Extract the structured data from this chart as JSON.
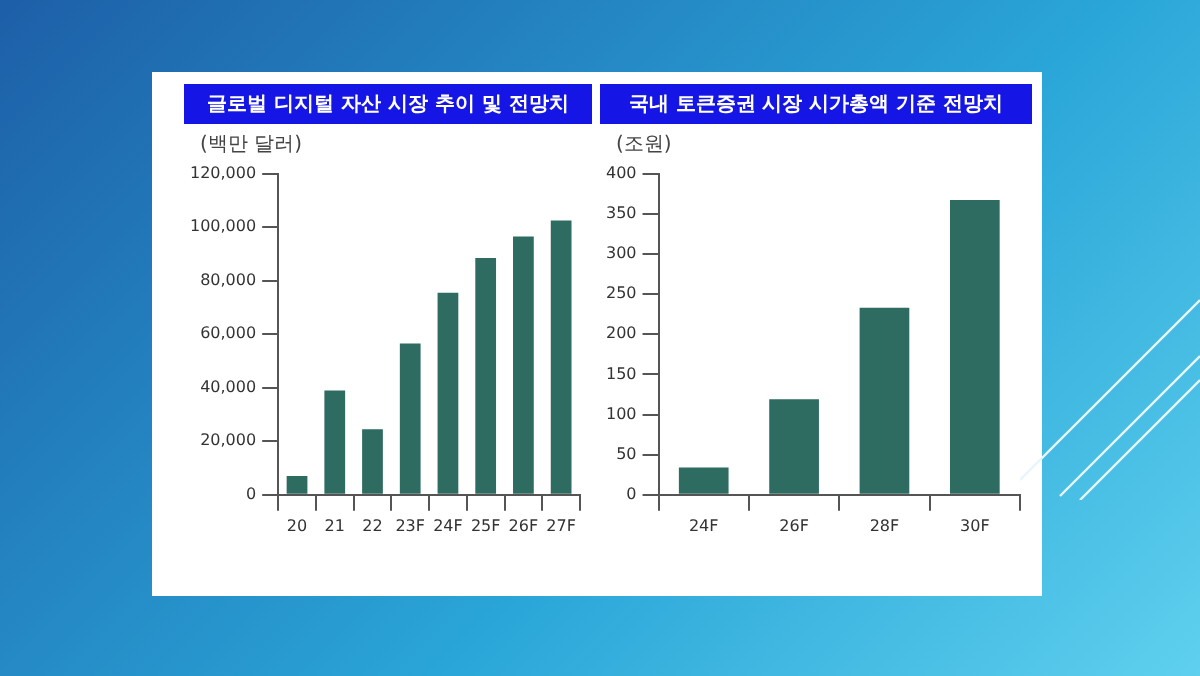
{
  "chart_data": [
    {
      "type": "bar",
      "title": "글로벌 디지털 자산 시장 추이 및 전망치",
      "ylabel": "(백만 달러)",
      "categories": [
        "20",
        "21",
        "22",
        "23F",
        "24F",
        "25F",
        "26F",
        "27F"
      ],
      "values": [
        7000,
        39000,
        24500,
        56500,
        75500,
        88500,
        96500,
        102500
      ],
      "color": "#2e6b60",
      "ylim": [
        0,
        120000
      ],
      "yticks": [
        0,
        {
          "value": 20000,
          "label": "20,000"
        },
        {
          "value": 40000,
          "label": "40,000"
        },
        {
          "value": 60000,
          "label": "60,000"
        },
        {
          "value": 80000,
          "label": "80,000"
        },
        {
          "value": 100000,
          "label": "100,000"
        },
        {
          "value": 120000,
          "label": "120,000"
        }
      ],
      "grid": false
    },
    {
      "type": "bar",
      "title": "국내 토큰증권 시장 시가총액 기준 전망치",
      "ylabel": "(조원)",
      "categories": [
        "24F",
        "26F",
        "28F",
        "30F"
      ],
      "values": [
        34,
        119,
        233,
        367
      ],
      "color": "#2e6b60",
      "ylim": [
        0,
        400
      ],
      "yticks": [
        0,
        50,
        100,
        150,
        200,
        250,
        300,
        350,
        400
      ],
      "grid": false
    }
  ]
}
